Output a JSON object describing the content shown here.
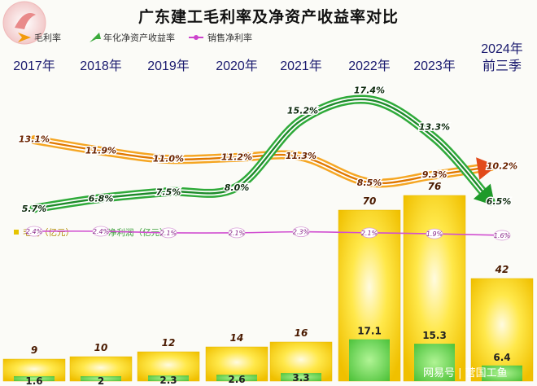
{
  "title": "广东建工毛利率及净资产收益率对比",
  "legend_top": [
    {
      "label": "毛利率",
      "color": "#f29b0c"
    },
    {
      "label": "年化净资产收益率",
      "color": "#3caa3c"
    },
    {
      "label": "销售净利率",
      "color": "#cc44cc"
    }
  ],
  "legend_bars": [
    {
      "label": "毛利（亿元）",
      "color": "#e6c400"
    },
    {
      "label": "净利润（亿元）",
      "color": "#5cd65c"
    }
  ],
  "watermark": "网易号 | 营国工鱼",
  "chart_data": {
    "type": "bar",
    "categories": [
      "2017年",
      "2018年",
      "2019年",
      "2020年",
      "2021年",
      "2022年",
      "2023年",
      "2024年前三季"
    ],
    "category_lines": [
      [
        "2017年"
      ],
      [
        "2018年"
      ],
      [
        "2019年"
      ],
      [
        "2020年"
      ],
      [
        "2021年"
      ],
      [
        "2022年"
      ],
      [
        "2023年"
      ],
      [
        "2024年",
        "前三季"
      ]
    ],
    "series": [
      {
        "name": "毛利（亿元）",
        "kind": "bar",
        "values": [
          9,
          10,
          12,
          14,
          16,
          70,
          76,
          42
        ],
        "color": "#f5d000"
      },
      {
        "name": "净利润（亿元）",
        "kind": "bar",
        "values": [
          1.6,
          2.0,
          2.3,
          2.6,
          3.3,
          17.1,
          15.3,
          6.4
        ],
        "color": "#55d055"
      },
      {
        "name": "毛利率",
        "kind": "line",
        "values": [
          13.1,
          11.9,
          11.0,
          11.2,
          11.3,
          8.5,
          9.3,
          10.2
        ],
        "labels": [
          "13.1%",
          "11.9%",
          "11.0%",
          "11.2%",
          "11.3%",
          "8.5%",
          "9.3%",
          "10.2%"
        ],
        "color": "#f29b0c"
      },
      {
        "name": "年化净资产收益率",
        "kind": "line",
        "values": [
          5.7,
          6.8,
          7.5,
          8.0,
          15.2,
          17.4,
          13.3,
          6.5
        ],
        "labels": [
          "5.7%",
          "6.8%",
          "7.5%",
          "8.0%",
          "15.2%",
          "17.4%",
          "13.3%",
          "6.5%"
        ],
        "color": "#3caa3c"
      },
      {
        "name": "销售净利率",
        "kind": "line",
        "values": [
          2.4,
          2.4,
          2.1,
          2.1,
          2.3,
          2.1,
          1.9,
          1.6
        ],
        "labels": [
          "2.4%",
          "2.4%",
          "2.1%",
          "2.1%",
          "2.3%",
          "2.1%",
          "1.9%",
          "1.6%"
        ],
        "color": "#cc44cc"
      }
    ]
  }
}
